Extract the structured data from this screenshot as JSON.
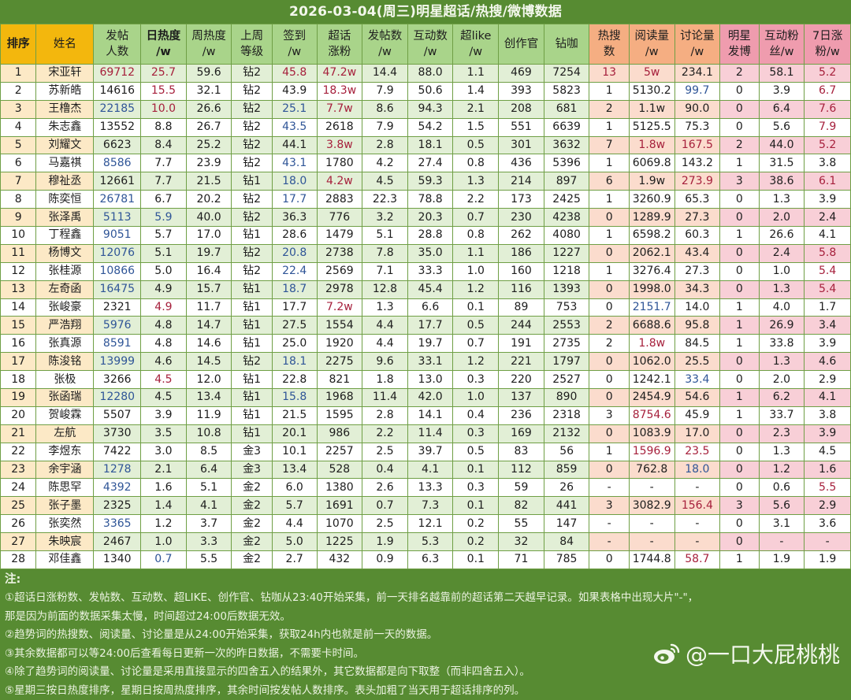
{
  "title": "2026-03-04(周三)明星超话/热搜/微博数据",
  "colors": {
    "title_bg": "#578b32",
    "header_key": "#f3b70d",
    "header_green": "#a9d48a",
    "header_orange": "#f5ae82",
    "header_pink": "#ef9cae",
    "text_red": "#a6203c",
    "text_blue": "#2f5597"
  },
  "columns": [
    {
      "key": "rank",
      "l1": "排序",
      "l2": "",
      "group": "key",
      "bold": true
    },
    {
      "key": "name",
      "l1": "姓名",
      "l2": "",
      "group": "key",
      "bold": false
    },
    {
      "key": "posters",
      "l1": "发帖",
      "l2": "人数",
      "group": "green",
      "bold": false
    },
    {
      "key": "daily_heat",
      "l1": "日热度",
      "l2": "/w",
      "group": "green",
      "bold": true
    },
    {
      "key": "weekly_heat",
      "l1": "周热度",
      "l2": "/w",
      "group": "green",
      "bold": false
    },
    {
      "key": "last_week_level",
      "l1": "上周",
      "l2": "等级",
      "group": "green",
      "bold": false
    },
    {
      "key": "checkin",
      "l1": "签到",
      "l2": "/w",
      "group": "green",
      "bold": false
    },
    {
      "key": "topic_fans",
      "l1": "超话",
      "l2": "涨粉",
      "group": "green",
      "bold": false
    },
    {
      "key": "posts",
      "l1": "发帖数",
      "l2": "/w",
      "group": "green",
      "bold": false
    },
    {
      "key": "interactions",
      "l1": "互动数",
      "l2": "/w",
      "group": "green",
      "bold": false
    },
    {
      "key": "superlike",
      "l1": "超like",
      "l2": "/w",
      "group": "green",
      "bold": false
    },
    {
      "key": "creators",
      "l1": "创作官",
      "l2": "",
      "group": "green",
      "bold": false
    },
    {
      "key": "zuanka",
      "l1": "钻咖",
      "l2": "",
      "group": "green",
      "bold": false
    },
    {
      "key": "hot_search",
      "l1": "热搜",
      "l2": "数",
      "group": "orange",
      "bold": false
    },
    {
      "key": "reads",
      "l1": "阅读量",
      "l2": "/w",
      "group": "orange",
      "bold": false
    },
    {
      "key": "discussions",
      "l1": "讨论量",
      "l2": "/w",
      "group": "orange",
      "bold": false
    },
    {
      "key": "star_posts",
      "l1": "明星",
      "l2": "发博",
      "group": "pink",
      "bold": false
    },
    {
      "key": "interact_fans",
      "l1": "互动粉",
      "l2": "丝/w",
      "group": "pink",
      "bold": false
    },
    {
      "key": "fans_7d",
      "l1": "7日涨",
      "l2": "粉/w",
      "group": "pink",
      "bold": false
    }
  ],
  "rows": [
    [
      "1",
      "宋亚轩",
      "69712",
      "25.7",
      "59.6",
      "钻2",
      "45.8",
      "47.2w",
      "14.4",
      "88.0",
      "1.1",
      "469",
      "7254",
      "13",
      "5w",
      "234.1",
      "2",
      "58.1",
      "5.2"
    ],
    [
      "2",
      "苏新皓",
      "14616",
      "15.5",
      "32.1",
      "钻2",
      "43.9",
      "18.3w",
      "7.9",
      "50.6",
      "1.4",
      "393",
      "5823",
      "1",
      "5130.2",
      "99.7",
      "0",
      "3.9",
      "6.7"
    ],
    [
      "3",
      "王橹杰",
      "22185",
      "10.0",
      "26.6",
      "钻2",
      "25.1",
      "7.7w",
      "8.6",
      "94.3",
      "2.1",
      "208",
      "681",
      "2",
      "1.1w",
      "90.0",
      "0",
      "6.4",
      "7.6"
    ],
    [
      "4",
      "朱志鑫",
      "13552",
      "8.8",
      "26.7",
      "钻2",
      "43.5",
      "2618",
      "7.9",
      "54.2",
      "1.5",
      "551",
      "6639",
      "1",
      "5125.5",
      "75.3",
      "0",
      "5.6",
      "7.9"
    ],
    [
      "5",
      "刘耀文",
      "6623",
      "8.4",
      "25.2",
      "钻2",
      "44.1",
      "3.8w",
      "2.8",
      "18.1",
      "0.5",
      "301",
      "3632",
      "7",
      "1.8w",
      "167.5",
      "2",
      "44.0",
      "5.2"
    ],
    [
      "6",
      "马嘉祺",
      "8586",
      "7.7",
      "23.9",
      "钻2",
      "43.1",
      "1780",
      "4.2",
      "27.4",
      "0.8",
      "436",
      "5396",
      "1",
      "6069.8",
      "143.2",
      "1",
      "31.5",
      "3.8"
    ],
    [
      "7",
      "穆祉丞",
      "12661",
      "7.7",
      "21.5",
      "钻1",
      "18.0",
      "4.2w",
      "4.5",
      "59.3",
      "1.3",
      "214",
      "897",
      "6",
      "1.9w",
      "273.9",
      "3",
      "38.6",
      "6.1"
    ],
    [
      "8",
      "陈奕恒",
      "26781",
      "6.7",
      "20.2",
      "钻2",
      "17.7",
      "2883",
      "22.3",
      "78.8",
      "2.2",
      "173",
      "2425",
      "1",
      "3260.9",
      "65.3",
      "0",
      "1.3",
      "3.9"
    ],
    [
      "9",
      "张泽禹",
      "5113",
      "5.9",
      "40.0",
      "钻2",
      "36.3",
      "776",
      "3.2",
      "20.3",
      "0.7",
      "230",
      "4238",
      "0",
      "1289.9",
      "27.3",
      "0",
      "2.0",
      "2.4"
    ],
    [
      "10",
      "丁程鑫",
      "9051",
      "5.7",
      "17.0",
      "钻1",
      "28.6",
      "1479",
      "5.1",
      "28.8",
      "0.8",
      "262",
      "4080",
      "1",
      "6598.2",
      "60.3",
      "1",
      "26.6",
      "4.1"
    ],
    [
      "11",
      "杨博文",
      "12076",
      "5.1",
      "19.7",
      "钻2",
      "20.8",
      "2738",
      "7.8",
      "35.0",
      "1.1",
      "186",
      "1227",
      "0",
      "2062.1",
      "43.4",
      "0",
      "2.4",
      "5.8"
    ],
    [
      "12",
      "张桂源",
      "10866",
      "5.0",
      "16.4",
      "钻2",
      "22.4",
      "2569",
      "7.1",
      "33.3",
      "1.0",
      "160",
      "1218",
      "1",
      "3276.4",
      "27.3",
      "0",
      "1.0",
      "5.4"
    ],
    [
      "13",
      "左奇函",
      "16475",
      "4.9",
      "15.7",
      "钻1",
      "18.7",
      "2978",
      "12.8",
      "45.4",
      "1.2",
      "116",
      "1393",
      "0",
      "1998.0",
      "34.3",
      "0",
      "1.3",
      "5.4"
    ],
    [
      "14",
      "张峻豪",
      "2321",
      "4.9",
      "11.7",
      "钻1",
      "17.7",
      "7.2w",
      "1.3",
      "6.6",
      "0.1",
      "89",
      "753",
      "0",
      "2151.7",
      "14.0",
      "1",
      "4.0",
      "1.7"
    ],
    [
      "15",
      "严浩翔",
      "5976",
      "4.8",
      "14.7",
      "钻1",
      "27.5",
      "1554",
      "4.4",
      "17.7",
      "0.5",
      "244",
      "2553",
      "2",
      "6688.6",
      "95.8",
      "1",
      "26.9",
      "3.4"
    ],
    [
      "16",
      "张真源",
      "8591",
      "4.8",
      "14.6",
      "钻1",
      "25.0",
      "1920",
      "4.4",
      "19.7",
      "0.7",
      "191",
      "2735",
      "2",
      "1.8w",
      "84.5",
      "1",
      "33.8",
      "3.9"
    ],
    [
      "17",
      "陈浚铭",
      "13999",
      "4.6",
      "14.5",
      "钻2",
      "18.1",
      "2275",
      "9.6",
      "33.1",
      "1.2",
      "221",
      "1797",
      "0",
      "1062.0",
      "25.5",
      "0",
      "1.3",
      "4.6"
    ],
    [
      "18",
      "张极",
      "3266",
      "4.5",
      "12.0",
      "钻1",
      "22.8",
      "821",
      "1.8",
      "13.0",
      "0.3",
      "220",
      "2527",
      "0",
      "1242.1",
      "33.4",
      "0",
      "2.0",
      "2.9"
    ],
    [
      "19",
      "张函瑞",
      "12280",
      "4.5",
      "13.4",
      "钻1",
      "15.8",
      "1968",
      "11.4",
      "42.0",
      "1.0",
      "137",
      "890",
      "0",
      "2454.9",
      "54.6",
      "1",
      "6.2",
      "4.1"
    ],
    [
      "20",
      "贺峻霖",
      "5507",
      "3.9",
      "11.9",
      "钻1",
      "21.5",
      "1595",
      "2.8",
      "14.1",
      "0.4",
      "236",
      "2318",
      "3",
      "8754.6",
      "45.9",
      "1",
      "33.7",
      "3.8"
    ],
    [
      "21",
      "左航",
      "3730",
      "3.5",
      "10.8",
      "钻1",
      "20.1",
      "986",
      "2.2",
      "11.4",
      "0.3",
      "169",
      "2132",
      "0",
      "1083.9",
      "17.0",
      "0",
      "2.3",
      "3.9"
    ],
    [
      "22",
      "李煜东",
      "7422",
      "3.0",
      "8.5",
      "金3",
      "10.1",
      "2257",
      "2.5",
      "39.7",
      "0.5",
      "83",
      "56",
      "1",
      "1596.9",
      "23.5",
      "0",
      "1.3",
      "4.5"
    ],
    [
      "23",
      "余宇涵",
      "1278",
      "2.1",
      "6.4",
      "金3",
      "13.4",
      "528",
      "0.4",
      "4.1",
      "0.1",
      "112",
      "859",
      "0",
      "762.8",
      "18.0",
      "0",
      "1.2",
      "1.6"
    ],
    [
      "24",
      "陈思罕",
      "4392",
      "1.6",
      "5.1",
      "金2",
      "6.0",
      "1380",
      "2.6",
      "13.3",
      "0.3",
      "59",
      "26",
      "-",
      "-",
      "-",
      "0",
      "0.6",
      "5.5"
    ],
    [
      "25",
      "张子墨",
      "2325",
      "1.4",
      "4.1",
      "金2",
      "5.7",
      "1691",
      "0.7",
      "7.3",
      "0.1",
      "82",
      "441",
      "3",
      "3082.9",
      "156.4",
      "3",
      "5.6",
      "2.9"
    ],
    [
      "26",
      "张奕然",
      "3365",
      "1.2",
      "3.7",
      "金2",
      "4.4",
      "1070",
      "2.5",
      "12.1",
      "0.2",
      "55",
      "147",
      "-",
      "-",
      "-",
      "0",
      "3.1",
      "3.6"
    ],
    [
      "27",
      "朱映宸",
      "2467",
      "1.0",
      "3.3",
      "金2",
      "5.0",
      "1225",
      "1.9",
      "5.3",
      "0.2",
      "32",
      "84",
      "-",
      "-",
      "-",
      "0",
      "-",
      "-"
    ],
    [
      "28",
      "邓佳鑫",
      "1340",
      "0.7",
      "5.5",
      "金2",
      "2.7",
      "432",
      "0.9",
      "6.3",
      "0.1",
      "71",
      "785",
      "0",
      "1744.8",
      "58.7",
      "1",
      "1.9",
      "1.9"
    ]
  ],
  "highlights": {
    "red": [
      [
        0,
        2
      ],
      [
        0,
        3
      ],
      [
        0,
        6
      ],
      [
        0,
        7
      ],
      [
        0,
        13
      ],
      [
        0,
        14
      ],
      [
        0,
        18
      ],
      [
        1,
        3
      ],
      [
        1,
        7
      ],
      [
        1,
        18
      ],
      [
        2,
        3
      ],
      [
        2,
        7
      ],
      [
        2,
        18
      ],
      [
        3,
        18
      ],
      [
        4,
        7
      ],
      [
        4,
        14
      ],
      [
        4,
        15
      ],
      [
        4,
        18
      ],
      [
        6,
        7
      ],
      [
        6,
        15
      ],
      [
        6,
        18
      ],
      [
        10,
        18
      ],
      [
        11,
        18
      ],
      [
        12,
        18
      ],
      [
        13,
        3
      ],
      [
        13,
        7
      ],
      [
        15,
        14
      ],
      [
        17,
        3
      ],
      [
        19,
        14
      ],
      [
        21,
        14
      ],
      [
        21,
        15
      ],
      [
        23,
        18
      ],
      [
        24,
        15
      ],
      [
        27,
        15
      ]
    ],
    "blue": [
      [
        2,
        2
      ],
      [
        2,
        6
      ],
      [
        3,
        6
      ],
      [
        5,
        2
      ],
      [
        5,
        6
      ],
      [
        6,
        6
      ],
      [
        7,
        2
      ],
      [
        7,
        6
      ],
      [
        8,
        2
      ],
      [
        8,
        3
      ],
      [
        9,
        2
      ],
      [
        10,
        2
      ],
      [
        10,
        6
      ],
      [
        11,
        2
      ],
      [
        11,
        6
      ],
      [
        12,
        2
      ],
      [
        12,
        6
      ],
      [
        13,
        14
      ],
      [
        14,
        2
      ],
      [
        15,
        2
      ],
      [
        16,
        2
      ],
      [
        16,
        6
      ],
      [
        17,
        15
      ],
      [
        18,
        2
      ],
      [
        18,
        6
      ],
      [
        1,
        15
      ],
      [
        22,
        2
      ],
      [
        22,
        15
      ],
      [
        23,
        2
      ],
      [
        25,
        2
      ],
      [
        27,
        3
      ]
    ]
  },
  "notes": {
    "heading": "注:",
    "lines": [
      "①超话日涨粉数、发帖数、互动数、超LIKE、创作官、钻咖从23:40开始采集，前一天排名越靠前的超话第二天越早记录。如果表格中出现大片\"-\"，",
      "那是因为前面的数据采集太慢，时间超过24:00后数据无效。",
      "②趋势词的热搜数、阅读量、讨论量是从24:00开始采集，获取24h内也就是前一天的数据。",
      "③其余数据都可以等24:00后查看每日更新一次的昨日数据，不需要卡时间。",
      "④除了趋势词的阅读量、讨论量是采用直接显示的四舍五入的结果外，其它数据都是向下取整（而非四舍五入）。",
      "⑤星期三按日热度排序，星期日按周热度排序，其余时间按发帖人数排序。表头加粗了当天用于超话排序的列。"
    ]
  },
  "watermark": {
    "icon": "weibo-logo-icon",
    "text": "@一口大屁桃桃"
  }
}
